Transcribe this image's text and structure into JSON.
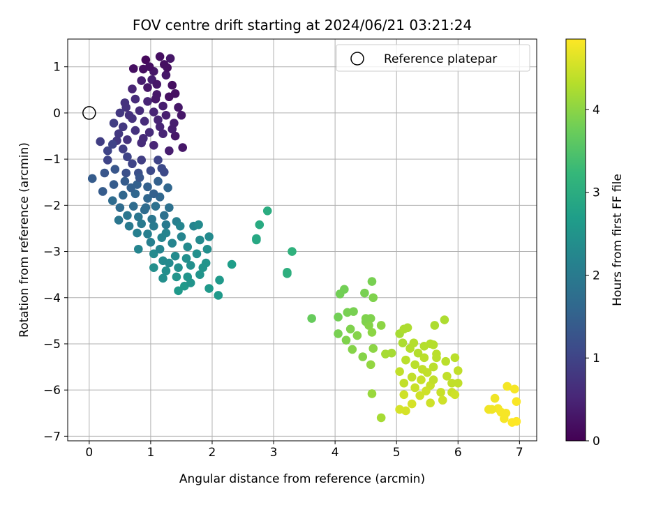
{
  "chart_data": {
    "type": "scatter",
    "title": "FOV centre drift starting at 2024/06/21 03:21:24",
    "xlabel": "Angular distance from reference (arcmin)",
    "ylabel": "Rotation from reference (arcmin)",
    "xlim": [
      -0.35,
      7.28
    ],
    "ylim": [
      -7.1,
      1.6
    ],
    "xticks": [
      0,
      1,
      2,
      3,
      4,
      5,
      6,
      7
    ],
    "yticks": [
      1,
      0,
      -1,
      -2,
      -3,
      -4,
      -5,
      -6,
      -7
    ],
    "grid": true,
    "legend": {
      "position": "top-right",
      "entries": [
        "Reference platepar"
      ]
    },
    "reference_point": {
      "x": 0,
      "y": 0
    },
    "colorbar": {
      "label": "Hours from first FF file",
      "range": [
        0,
        4.85
      ],
      "ticks": [
        0,
        1,
        2,
        3,
        4
      ],
      "colormap": "viridis",
      "stops": [
        "#440154",
        "#482878",
        "#3e4989",
        "#31688e",
        "#26828e",
        "#1f9e89",
        "#35b779",
        "#6ece58",
        "#b5de2b",
        "#fde725"
      ]
    },
    "series": [
      {
        "points": [
          [
            0.92,
            1.15,
            0.1
          ],
          [
            1.15,
            1.22,
            0.2
          ],
          [
            1.32,
            1.18,
            0.3
          ],
          [
            1.22,
            1.05,
            0.2
          ],
          [
            1.05,
            0.9,
            0.3
          ],
          [
            0.88,
            0.95,
            0.2
          ],
          [
            1.02,
            0.72,
            0.4
          ],
          [
            1.25,
            0.82,
            0.3
          ],
          [
            1.35,
            0.6,
            0.2
          ],
          [
            0.95,
            0.55,
            0.3
          ],
          [
            0.85,
            0.7,
            0.4
          ],
          [
            1.1,
            0.4,
            0.3
          ],
          [
            1.3,
            0.35,
            0.2
          ],
          [
            1.2,
            0.15,
            0.4
          ],
          [
            0.95,
            0.25,
            0.5
          ],
          [
            0.75,
            0.3,
            0.6
          ],
          [
            0.6,
            0.12,
            0.7
          ],
          [
            0.82,
            0.05,
            0.6
          ],
          [
            1.05,
            0.02,
            0.5
          ],
          [
            1.25,
            -0.05,
            0.4
          ],
          [
            1.45,
            0.12,
            0.3
          ],
          [
            1.5,
            -0.05,
            0.3
          ],
          [
            1.38,
            -0.22,
            0.4
          ],
          [
            1.15,
            -0.3,
            0.5
          ],
          [
            0.9,
            -0.18,
            0.6
          ],
          [
            0.7,
            -0.12,
            0.7
          ],
          [
            0.55,
            -0.3,
            0.8
          ],
          [
            0.75,
            -0.38,
            0.7
          ],
          [
            0.98,
            -0.42,
            0.6
          ],
          [
            1.2,
            -0.45,
            0.5
          ],
          [
            1.4,
            -0.5,
            0.3
          ],
          [
            1.52,
            -0.75,
            0.3
          ],
          [
            1.3,
            -0.82,
            0.4
          ],
          [
            1.05,
            -0.7,
            0.5
          ],
          [
            0.85,
            -0.65,
            0.6
          ],
          [
            0.62,
            -0.58,
            0.7
          ],
          [
            0.45,
            -0.6,
            0.8
          ],
          [
            0.48,
            -0.45,
            0.8
          ],
          [
            0.4,
            -0.22,
            0.9
          ],
          [
            0.5,
            0.0,
            0.8
          ],
          [
            0.65,
            -0.05,
            0.7
          ],
          [
            1.1,
            0.62,
            0.3
          ],
          [
            0.98,
            1.0,
            0.2
          ],
          [
            1.27,
            0.98,
            0.2
          ],
          [
            1.4,
            0.42,
            0.2
          ],
          [
            0.7,
            0.52,
            0.5
          ],
          [
            1.12,
            -0.15,
            0.5
          ],
          [
            0.88,
            -0.55,
            0.6
          ],
          [
            1.35,
            -0.35,
            0.4
          ],
          [
            0.58,
            0.22,
            0.7
          ],
          [
            0.72,
            0.96,
            0.2
          ],
          [
            1.08,
            0.3,
            0.3
          ]
        ]
      },
      {
        "points": [
          [
            0.18,
            -0.62,
            0.9
          ],
          [
            0.3,
            -0.82,
            1.0
          ],
          [
            0.38,
            -0.68,
            1.0
          ],
          [
            0.55,
            -0.78,
            0.9
          ],
          [
            0.62,
            -0.95,
            1.0
          ],
          [
            0.7,
            -1.1,
            1.0
          ],
          [
            0.85,
            -1.02,
            0.9
          ],
          [
            1.12,
            -1.02,
            1.0
          ],
          [
            1.18,
            -1.2,
            1.1
          ],
          [
            1.0,
            -1.25,
            1.1
          ],
          [
            0.8,
            -1.3,
            1.2
          ],
          [
            0.6,
            -1.3,
            1.2
          ],
          [
            0.42,
            -1.22,
            1.3
          ],
          [
            0.25,
            -1.3,
            1.3
          ],
          [
            0.05,
            -1.42,
            1.4
          ],
          [
            0.22,
            -1.7,
            1.4
          ],
          [
            0.4,
            -1.55,
            1.4
          ],
          [
            0.58,
            -1.48,
            1.4
          ],
          [
            0.78,
            -1.55,
            1.5
          ],
          [
            0.95,
            -1.6,
            1.5
          ],
          [
            1.12,
            -1.48,
            1.5
          ],
          [
            1.28,
            -1.62,
            1.6
          ],
          [
            1.15,
            -1.82,
            1.6
          ],
          [
            0.95,
            -1.85,
            1.6
          ],
          [
            0.75,
            -1.75,
            1.6
          ],
          [
            0.55,
            -1.78,
            1.6
          ],
          [
            0.38,
            -1.9,
            1.7
          ],
          [
            0.5,
            -2.05,
            1.7
          ],
          [
            0.72,
            -2.02,
            1.7
          ],
          [
            0.9,
            -2.1,
            1.7
          ],
          [
            1.08,
            -2.02,
            1.8
          ],
          [
            1.3,
            -2.05,
            1.8
          ],
          [
            1.22,
            -2.22,
            1.8
          ],
          [
            1.02,
            -2.3,
            1.9
          ],
          [
            0.8,
            -2.25,
            1.9
          ],
          [
            0.62,
            -2.22,
            1.9
          ],
          [
            0.48,
            -2.32,
            1.9
          ],
          [
            0.65,
            -2.45,
            2.0
          ],
          [
            0.85,
            -2.4,
            2.0
          ],
          [
            1.05,
            -2.45,
            2.0
          ],
          [
            1.25,
            -2.42,
            2.0
          ],
          [
            1.42,
            -2.35,
            2.1
          ],
          [
            0.92,
            -2.05,
            1.7
          ],
          [
            0.68,
            -1.62,
            1.5
          ],
          [
            1.22,
            -1.28,
            1.1
          ],
          [
            0.3,
            -1.02,
            1.0
          ],
          [
            0.82,
            -1.4,
            1.3
          ],
          [
            1.05,
            -1.75,
            1.5
          ]
        ]
      },
      {
        "points": [
          [
            0.78,
            -2.6,
            2.1
          ],
          [
            0.8,
            -2.95,
            2.2
          ],
          [
            1.0,
            -2.8,
            2.1
          ],
          [
            1.18,
            -2.7,
            2.2
          ],
          [
            1.35,
            -2.82,
            2.2
          ],
          [
            1.5,
            -2.68,
            2.2
          ],
          [
            1.6,
            -2.9,
            2.3
          ],
          [
            1.8,
            -2.75,
            2.3
          ],
          [
            1.95,
            -2.68,
            2.3
          ],
          [
            1.7,
            -2.45,
            2.2
          ],
          [
            1.48,
            -2.45,
            2.2
          ],
          [
            1.25,
            -2.6,
            2.2
          ],
          [
            1.05,
            -3.05,
            2.3
          ],
          [
            1.2,
            -3.2,
            2.3
          ],
          [
            1.4,
            -3.1,
            2.3
          ],
          [
            1.58,
            -3.15,
            2.4
          ],
          [
            1.75,
            -3.05,
            2.4
          ],
          [
            1.92,
            -2.95,
            2.4
          ],
          [
            1.05,
            -3.35,
            2.4
          ],
          [
            1.25,
            -3.42,
            2.4
          ],
          [
            1.45,
            -3.35,
            2.4
          ],
          [
            1.65,
            -3.3,
            2.4
          ],
          [
            1.85,
            -3.35,
            2.5
          ],
          [
            1.2,
            -3.58,
            2.4
          ],
          [
            1.42,
            -3.55,
            2.5
          ],
          [
            1.6,
            -3.55,
            2.5
          ],
          [
            1.8,
            -3.5,
            2.5
          ],
          [
            1.55,
            -3.75,
            2.6
          ],
          [
            1.45,
            -3.85,
            2.6
          ],
          [
            1.95,
            -3.8,
            2.6
          ],
          [
            2.1,
            -3.95,
            2.6
          ],
          [
            2.12,
            -3.62,
            2.6
          ],
          [
            2.32,
            -3.28,
            2.7
          ],
          [
            1.9,
            -3.25,
            2.5
          ],
          [
            1.65,
            -3.68,
            2.5
          ],
          [
            1.3,
            -3.25,
            2.3
          ],
          [
            1.15,
            -2.95,
            2.2
          ],
          [
            0.95,
            -2.62,
            2.1
          ],
          [
            1.78,
            -2.42,
            2.3
          ]
        ]
      },
      {
        "points": [
          [
            2.72,
            -2.72,
            2.9
          ],
          [
            2.72,
            -2.75,
            2.9
          ],
          [
            2.77,
            -2.42,
            2.95
          ],
          [
            2.9,
            -2.12,
            3.0
          ],
          [
            3.22,
            -3.45,
            3.05
          ],
          [
            3.22,
            -3.48,
            3.05
          ],
          [
            3.3,
            -3.0,
            3.1
          ]
        ]
      },
      {
        "points": [
          [
            3.62,
            -4.45,
            3.7
          ],
          [
            4.05,
            -4.42,
            3.8
          ],
          [
            4.08,
            -3.92,
            3.8
          ],
          [
            4.15,
            -3.82,
            3.8
          ],
          [
            4.2,
            -4.32,
            3.85
          ],
          [
            4.3,
            -4.3,
            3.85
          ],
          [
            4.25,
            -4.68,
            3.9
          ],
          [
            4.05,
            -4.78,
            3.85
          ],
          [
            4.18,
            -4.92,
            3.9
          ],
          [
            4.28,
            -5.12,
            3.95
          ],
          [
            4.45,
            -5.28,
            3.95
          ],
          [
            4.5,
            -4.52,
            3.9
          ],
          [
            4.48,
            -3.9,
            3.85
          ],
          [
            4.6,
            -3.65,
            3.85
          ],
          [
            4.62,
            -4.0,
            3.9
          ],
          [
            4.58,
            -4.45,
            3.9
          ],
          [
            4.55,
            -4.6,
            3.95
          ],
          [
            4.6,
            -4.75,
            4.0
          ],
          [
            4.75,
            -4.6,
            4.0
          ],
          [
            4.62,
            -5.1,
            4.0
          ],
          [
            4.58,
            -5.45,
            4.05
          ],
          [
            4.6,
            -6.08,
            4.1
          ],
          [
            4.75,
            -6.6,
            4.2
          ],
          [
            4.36,
            -4.82,
            3.95
          ],
          [
            4.5,
            -4.45,
            3.9
          ]
        ]
      },
      {
        "points": [
          [
            4.82,
            -5.22,
            4.2
          ],
          [
            4.92,
            -5.2,
            4.2
          ],
          [
            5.05,
            -4.78,
            4.2
          ],
          [
            5.12,
            -4.68,
            4.25
          ],
          [
            5.18,
            -4.65,
            4.25
          ],
          [
            5.1,
            -4.98,
            4.25
          ],
          [
            5.28,
            -4.98,
            4.3
          ],
          [
            5.45,
            -5.05,
            4.3
          ],
          [
            5.55,
            -5.0,
            4.3
          ],
          [
            5.6,
            -5.02,
            4.3
          ],
          [
            5.62,
            -4.6,
            4.25
          ],
          [
            5.78,
            -4.48,
            4.25
          ],
          [
            5.65,
            -5.22,
            4.35
          ],
          [
            5.8,
            -5.38,
            4.35
          ],
          [
            5.95,
            -5.3,
            4.35
          ],
          [
            6.0,
            -5.58,
            4.4
          ],
          [
            5.9,
            -5.85,
            4.4
          ],
          [
            6.0,
            -5.85,
            4.4
          ],
          [
            5.82,
            -5.7,
            4.4
          ],
          [
            5.6,
            -5.5,
            4.35
          ],
          [
            5.45,
            -5.3,
            4.35
          ],
          [
            5.3,
            -5.45,
            4.35
          ],
          [
            5.15,
            -5.35,
            4.35
          ],
          [
            5.05,
            -5.6,
            4.4
          ],
          [
            5.12,
            -5.85,
            4.4
          ],
          [
            5.25,
            -5.72,
            4.4
          ],
          [
            5.4,
            -5.78,
            4.45
          ],
          [
            5.55,
            -5.9,
            4.45
          ],
          [
            5.72,
            -6.05,
            4.45
          ],
          [
            5.9,
            -6.05,
            4.45
          ],
          [
            5.95,
            -6.1,
            4.5
          ],
          [
            5.75,
            -6.22,
            4.5
          ],
          [
            5.55,
            -6.28,
            4.5
          ],
          [
            5.38,
            -6.12,
            4.5
          ],
          [
            5.25,
            -6.3,
            4.55
          ],
          [
            5.15,
            -6.45,
            4.55
          ],
          [
            5.05,
            -6.42,
            4.55
          ],
          [
            5.12,
            -6.1,
            4.5
          ],
          [
            5.3,
            -5.95,
            4.45
          ],
          [
            5.48,
            -6.02,
            4.5
          ],
          [
            5.65,
            -5.3,
            4.35
          ],
          [
            5.35,
            -5.2,
            4.3
          ],
          [
            5.22,
            -5.1,
            4.3
          ],
          [
            5.5,
            -5.62,
            4.4
          ],
          [
            5.6,
            -5.78,
            4.4
          ],
          [
            5.42,
            -5.55,
            4.4
          ]
        ]
      },
      {
        "points": [
          [
            6.5,
            -6.42,
            4.75
          ],
          [
            6.6,
            -6.18,
            4.75
          ],
          [
            6.65,
            -6.4,
            4.78
          ],
          [
            6.7,
            -6.48,
            4.8
          ],
          [
            6.75,
            -6.62,
            4.8
          ],
          [
            6.78,
            -6.5,
            4.8
          ],
          [
            6.8,
            -5.92,
            4.78
          ],
          [
            6.88,
            -6.7,
            4.85
          ],
          [
            6.92,
            -5.98,
            4.8
          ],
          [
            6.95,
            -6.25,
            4.82
          ],
          [
            6.95,
            -6.68,
            4.85
          ],
          [
            6.55,
            -6.42,
            4.75
          ]
        ]
      }
    ]
  }
}
